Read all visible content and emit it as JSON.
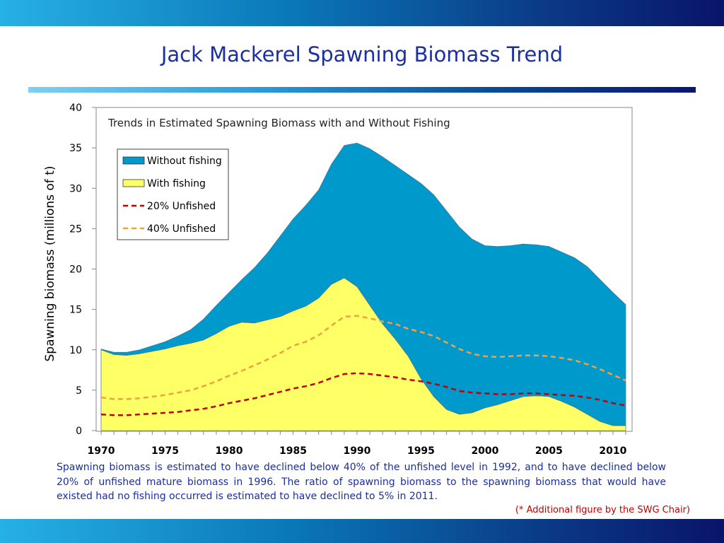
{
  "slide": {
    "title": "Jack Mackerel Spawning Biomass Trend",
    "caption": "Spawning biomass is estimated to have declined below 40% of the unfished level in 1992, and to have declined below 20% of unfished mature biomass in 1996. The ratio of spawning biomass to the spawning biomass that would have existed had no fishing occurred is estimated to have declined to 5% in 2011.",
    "credit": "(* Additional figure by the SWG Chair)"
  },
  "chart_data": {
    "type": "area",
    "title": "Trends in Estimated Spawning Biomass with and Without Fishing",
    "xlabel": "",
    "ylabel": "Spawning biomass (millions of t)",
    "xlim": [
      1970,
      2011
    ],
    "ylim": [
      0,
      40
    ],
    "x_ticks": [
      1970,
      1975,
      1980,
      1985,
      1990,
      1995,
      2000,
      2005,
      2010
    ],
    "y_ticks": [
      0,
      5,
      10,
      15,
      20,
      25,
      30,
      35,
      40
    ],
    "grid": false,
    "legend_position": "top-left",
    "x": [
      1970,
      1971,
      1972,
      1973,
      1974,
      1975,
      1976,
      1977,
      1978,
      1979,
      1980,
      1981,
      1982,
      1983,
      1984,
      1985,
      1986,
      1987,
      1988,
      1989,
      1990,
      1991,
      1992,
      1993,
      1994,
      1995,
      1996,
      1997,
      1998,
      1999,
      2000,
      2001,
      2002,
      2003,
      2004,
      2005,
      2006,
      2007,
      2008,
      2009,
      2010,
      2011
    ],
    "series": [
      {
        "name": "Without fishing",
        "kind": "area",
        "color": "#0099cc",
        "values": [
          10.1,
          9.7,
          9.7,
          10.0,
          10.5,
          11.0,
          11.7,
          12.5,
          13.8,
          15.5,
          17.1,
          18.7,
          20.2,
          22.0,
          24.1,
          26.2,
          27.9,
          29.8,
          33.0,
          35.3,
          35.6,
          34.9,
          33.9,
          32.8,
          31.7,
          30.6,
          29.2,
          27.2,
          25.2,
          23.7,
          22.9,
          22.8,
          22.9,
          23.1,
          23.0,
          22.8,
          22.1,
          21.4,
          20.3,
          18.7,
          17.1,
          15.6
        ]
      },
      {
        "name": "With fishing",
        "kind": "area",
        "color": "#ffff66",
        "values": [
          10.0,
          9.4,
          9.3,
          9.5,
          9.8,
          10.1,
          10.5,
          10.8,
          11.2,
          12.0,
          12.9,
          13.4,
          13.3,
          13.7,
          14.1,
          14.8,
          15.4,
          16.4,
          18.1,
          18.9,
          17.8,
          15.5,
          13.2,
          11.3,
          9.2,
          6.4,
          4.2,
          2.6,
          2.0,
          2.2,
          2.8,
          3.2,
          3.7,
          4.2,
          4.3,
          4.2,
          3.6,
          2.9,
          2.0,
          1.1,
          0.6,
          0.6
        ]
      },
      {
        "name": "20% Unfished",
        "kind": "dashed-line",
        "color": "#c00000",
        "values": [
          2.0,
          1.9,
          1.9,
          2.0,
          2.1,
          2.2,
          2.3,
          2.5,
          2.7,
          3.0,
          3.4,
          3.7,
          4.0,
          4.4,
          4.8,
          5.2,
          5.5,
          5.9,
          6.5,
          7.0,
          7.1,
          7.0,
          6.8,
          6.6,
          6.3,
          6.1,
          5.8,
          5.4,
          4.9,
          4.7,
          4.6,
          4.5,
          4.5,
          4.6,
          4.6,
          4.5,
          4.4,
          4.3,
          4.1,
          3.8,
          3.4,
          3.1
        ]
      },
      {
        "name": "40% Unfished",
        "kind": "dashed-line",
        "color": "#f4a040",
        "values": [
          4.1,
          3.9,
          3.9,
          4.0,
          4.2,
          4.4,
          4.7,
          5.0,
          5.5,
          6.1,
          6.8,
          7.4,
          8.1,
          8.8,
          9.6,
          10.5,
          11.0,
          11.8,
          13.0,
          14.1,
          14.2,
          13.9,
          13.5,
          13.2,
          12.6,
          12.2,
          11.7,
          10.9,
          10.1,
          9.5,
          9.2,
          9.1,
          9.2,
          9.3,
          9.3,
          9.2,
          9.0,
          8.7,
          8.2,
          7.6,
          6.9,
          6.2
        ]
      }
    ]
  }
}
